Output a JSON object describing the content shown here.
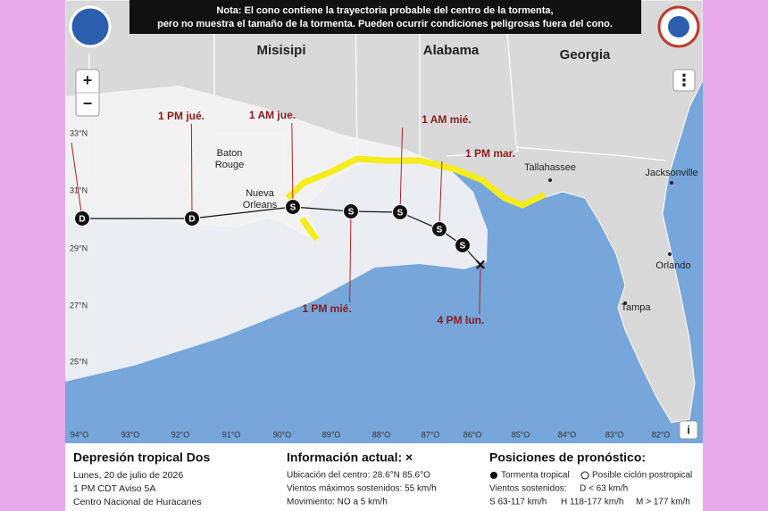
{
  "note": [
    "Nota: El cono contiene la trayectoria probable del centro de la tormenta,",
    "pero no muestra el tamaño de la tormenta. Pueden ocurrir condiciones peligrosas fuera del cono."
  ],
  "map": {
    "states": [
      "Misisipi",
      "Alabama",
      "Georgia"
    ],
    "cities": [
      [
        "Baton",
        "Rouge"
      ],
      [
        "Nueva",
        "Orleans"
      ],
      [
        "Tallahassee"
      ],
      [
        "Jacksonville"
      ],
      [
        "Orlando"
      ],
      [
        "Tampa"
      ]
    ],
    "forecast_labels": [
      "1 PM jué.",
      "1 AM jue.",
      "1 AM mié.",
      "1 PM mar.",
      "1 PM mié.",
      "4 PM lun."
    ],
    "points": [
      "D",
      "D",
      "S",
      "S",
      "S",
      "S",
      "S",
      "×"
    ],
    "latitudes": [
      "33°N",
      "31°N",
      "29°N",
      "27°N",
      "25°N"
    ],
    "longitudes": [
      "94°O",
      "93°O",
      "92°O",
      "91°O",
      "90°O",
      "89°O",
      "88°O",
      "87°O",
      "86°O",
      "85°O",
      "84°O",
      "83°O",
      "82°O"
    ],
    "controls": [
      "+",
      "−",
      "⋮",
      "i"
    ]
  },
  "panel": {
    "storm": {
      "title": "Depresión tropical Dos",
      "lines": [
        "Lunes, 20 de julio de 2026",
        "1 PM CDT Aviso 5A",
        "Centro Nacional de Huracanes"
      ]
    },
    "current": {
      "title": "Información actual: ×",
      "lines": [
        "Ubicación del centro: 28.6°N 85.6°O",
        "Vientos máximos sostenidos: 55 km/h",
        "Movimiento: NO a 5 km/h"
      ]
    },
    "forecast": {
      "title": "Posiciones de pronóstico:",
      "legend": [
        "Tormenta tropical",
        "Posible ciclón postropical"
      ],
      "winds_title": "Vientos sostenidos:",
      "categories": [
        "D < 63 km/h",
        "S 63-117 km/h",
        "H 118-177 km/h",
        "M > 177 km/h"
      ]
    }
  }
}
